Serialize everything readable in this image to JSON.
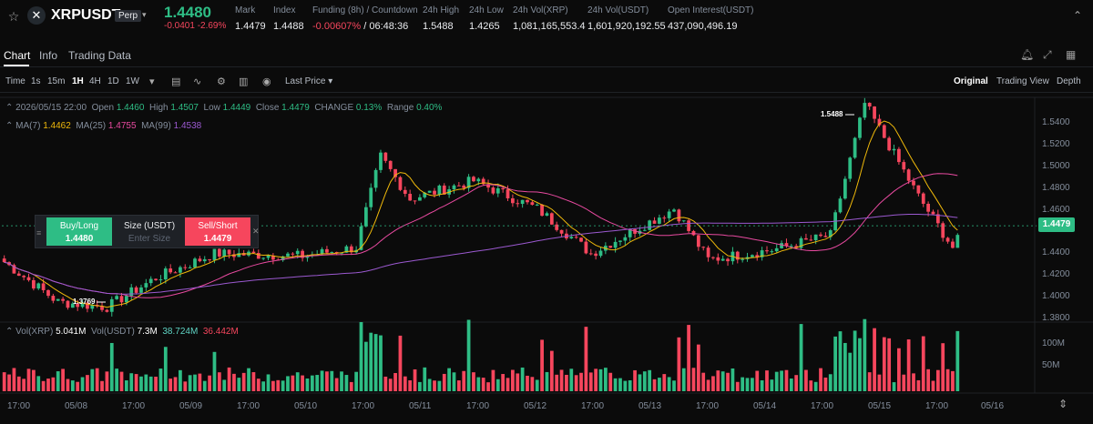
{
  "header": {
    "pair": "XRPUSDT",
    "contract_type": "Perp",
    "price": "1.4480",
    "change": "-0.0401",
    "change_pct": "-2.69%",
    "stats": [
      {
        "label": "Mark",
        "value": "1.4479"
      },
      {
        "label": "Index",
        "value": "1.4488"
      },
      {
        "label": "Funding (8h) / Countdown",
        "value_neg": "-0.00607%",
        "value": "/ 06:48:36"
      },
      {
        "label": "24h High",
        "value": "1.5488"
      },
      {
        "label": "24h Low",
        "value": "1.4265"
      },
      {
        "label": "24h Vol(XRP)",
        "value": "1,081,165,553.4"
      },
      {
        "label": "24h Vol(USDT)",
        "value": "1,601,920,192.55"
      },
      {
        "label": "Open Interest(USDT)",
        "value": "437,090,496.19"
      }
    ]
  },
  "tabs": [
    "Chart",
    "Info",
    "Trading Data"
  ],
  "toolbar": {
    "time_label": "Time",
    "intervals": [
      "1s",
      "15m",
      "1H",
      "4H",
      "1D",
      "1W"
    ],
    "active_interval": "1H",
    "price_type": "Last Price",
    "views": [
      "Original",
      "Trading View",
      "Depth"
    ],
    "active_view": "Original"
  },
  "ohlc": {
    "date": "2026/05/15 22:00",
    "open_label": "Open",
    "open": "1.4460",
    "high_label": "High",
    "high": "1.4507",
    "low_label": "Low",
    "low": "1.4449",
    "close_label": "Close",
    "close": "1.4479",
    "change_label": "CHANGE",
    "change": "0.13%",
    "range_label": "Range",
    "range": "0.40%"
  },
  "ma": {
    "ma7_label": "MA(7)",
    "ma7": "1.4462",
    "ma25_label": "MA(25)",
    "ma25": "1.4755",
    "ma99_label": "MA(99)",
    "ma99": "1.4538"
  },
  "volume": {
    "vol_xrp_label": "Vol(XRP)",
    "vol_xrp": "5.041M",
    "vol_usdt_label": "Vol(USDT)",
    "vol_usdt": "7.3M",
    "ma1": "38.724M",
    "ma2": "36.442M"
  },
  "order_panel": {
    "buy_label": "Buy/Long",
    "buy_price": "1.4480",
    "size_label": "Size (USDT)",
    "size_placeholder": "Enter Size",
    "sell_label": "Sell/Short",
    "sell_price": "1.4479"
  },
  "last_price_tag": "1.4479",
  "high_marker": "1.5488",
  "low_marker": "1.3769",
  "price_axis": [
    "1.5400",
    "1.5200",
    "1.5000",
    "1.4800",
    "1.4600",
    "1.4400",
    "1.4200",
    "1.4000",
    "1.3800"
  ],
  "volume_axis": [
    "100M",
    "50M"
  ],
  "time_axis": [
    "17:00",
    "05/08",
    "17:00",
    "05/09",
    "17:00",
    "05/10",
    "17:00",
    "05/11",
    "17:00",
    "05/12",
    "17:00",
    "05/13",
    "17:00",
    "05/14",
    "17:00",
    "05/15",
    "17:00",
    "05/16"
  ],
  "colors": {
    "up": "#2ebd85",
    "down": "#f6465d",
    "ma7": "#f0b90b",
    "ma25": "#e84aa0",
    "ma99": "#9b59d0"
  },
  "chart_data": {
    "type": "candlestick",
    "interval": "1H",
    "ylim": [
      1.37,
      1.55
    ],
    "close_series_keypoints": [
      {
        "t": "05/07 17:00",
        "price": 1.418
      },
      {
        "t": "05/08 04:00",
        "price": 1.385
      },
      {
        "t": "05/08 14:00",
        "price": 1.381
      },
      {
        "t": "05/09 00:00",
        "price": 1.405
      },
      {
        "t": "05/09 12:00",
        "price": 1.425
      },
      {
        "t": "05/10 06:00",
        "price": 1.423
      },
      {
        "t": "05/10 17:00",
        "price": 1.43
      },
      {
        "t": "05/10 22:00",
        "price": 1.505
      },
      {
        "t": "05/11 04:00",
        "price": 1.47
      },
      {
        "t": "05/11 17:00",
        "price": 1.485
      },
      {
        "t": "05/12 06:00",
        "price": 1.462
      },
      {
        "t": "05/12 17:00",
        "price": 1.425
      },
      {
        "t": "05/13 10:00",
        "price": 1.462
      },
      {
        "t": "05/13 17:00",
        "price": 1.42
      },
      {
        "t": "05/14 06:00",
        "price": 1.428
      },
      {
        "t": "05/14 18:00",
        "price": 1.44
      },
      {
        "t": "05/15 01:00",
        "price": 1.5488
      },
      {
        "t": "05/15 12:00",
        "price": 1.472
      },
      {
        "t": "05/15 19:00",
        "price": 1.43
      },
      {
        "t": "05/15 22:00",
        "price": 1.4479
      }
    ]
  }
}
